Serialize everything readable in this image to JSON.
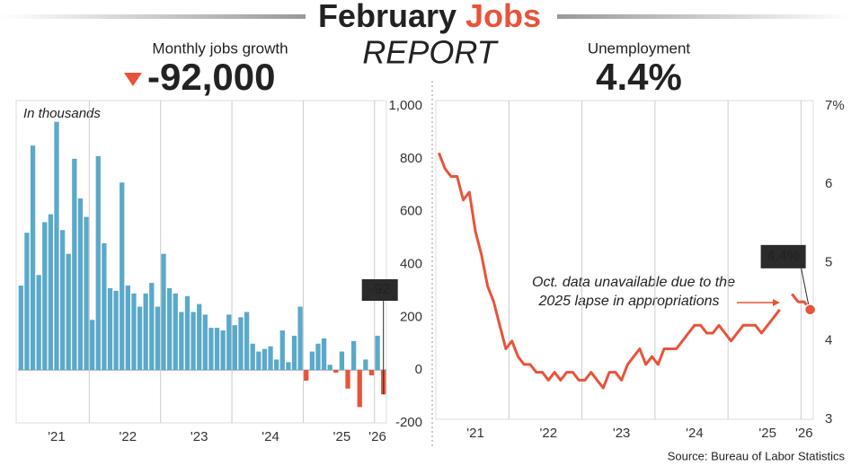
{
  "header": {
    "title_1": "February",
    "title_2": "Jobs",
    "subtitle": "REPORT"
  },
  "source": "Source: Bureau of Labor Statistics",
  "chart_data": [
    {
      "type": "bar",
      "title": "Monthly jobs growth",
      "headline": "-92,000",
      "unit_note": "In thousands",
      "color": "#5aa9c9",
      "negative_color": "#e8533a",
      "categories": [
        null,
        null,
        null,
        null,
        null,
        null,
        "'21",
        null,
        null,
        null,
        null,
        null,
        null,
        null,
        null,
        null,
        null,
        null,
        "'22",
        null,
        null,
        null,
        null,
        null,
        null,
        null,
        null,
        null,
        null,
        null,
        "'23",
        null,
        null,
        null,
        null,
        null,
        null,
        null,
        null,
        null,
        null,
        null,
        "'24",
        null,
        null,
        null,
        null,
        null,
        null,
        null,
        null,
        null,
        null,
        null,
        "'25",
        null,
        null,
        null,
        null,
        null,
        "'26",
        null
      ],
      "series": [
        {
          "name": "Monthly jobs growth",
          "values": [
            320,
            520,
            850,
            360,
            560,
            590,
            940,
            530,
            440,
            800,
            650,
            580,
            190,
            810,
            480,
            310,
            300,
            710,
            320,
            290,
            240,
            290,
            330,
            240,
            440,
            310,
            290,
            220,
            280,
            220,
            250,
            210,
            160,
            160,
            150,
            210,
            170,
            200,
            220,
            100,
            70,
            80,
            90,
            40,
            150,
            30,
            130,
            240,
            -40,
            70,
            100,
            120,
            20,
            -10,
            70,
            -70,
            110,
            -140,
            40,
            -20,
            130,
            -92
          ]
        }
      ],
      "ylim": [
        -200,
        1000
      ],
      "yticks": [
        {
          "value": 1000,
          "label": "1,000"
        },
        800,
        600,
        400,
        200,
        0,
        -200
      ]
    },
    {
      "type": "line",
      "title": "Unemployment",
      "headline": "4.4%",
      "color": "#e8533a",
      "annotation": [
        "Oct. data unavailable due to the",
        "2025 lapse in appropriations"
      ],
      "categories": [
        null,
        null,
        null,
        null,
        null,
        null,
        "'21",
        null,
        null,
        null,
        null,
        null,
        null,
        null,
        null,
        null,
        null,
        null,
        "'22",
        null,
        null,
        null,
        null,
        null,
        null,
        null,
        null,
        null,
        null,
        null,
        "'23",
        null,
        null,
        null,
        null,
        null,
        null,
        null,
        null,
        null,
        null,
        null,
        "'24",
        null,
        null,
        null,
        null,
        null,
        null,
        null,
        null,
        null,
        null,
        null,
        "'25",
        null,
        null,
        null,
        null,
        null,
        "'26",
        null
      ],
      "series": [
        {
          "name": "Unemployment",
          "values": [
            6.4,
            6.2,
            6.1,
            6.1,
            5.8,
            5.9,
            5.4,
            5.1,
            4.7,
            4.5,
            4.2,
            3.9,
            4.0,
            3.8,
            3.7,
            3.7,
            3.6,
            3.6,
            3.5,
            3.6,
            3.5,
            3.6,
            3.6,
            3.5,
            3.5,
            3.6,
            3.5,
            3.4,
            3.6,
            3.6,
            3.5,
            3.7,
            3.8,
            3.9,
            3.7,
            3.8,
            3.7,
            3.9,
            3.9,
            3.9,
            4.0,
            4.1,
            4.2,
            4.2,
            4.1,
            4.1,
            4.2,
            4.1,
            4.0,
            4.1,
            4.2,
            4.2,
            4.2,
            4.1,
            4.2,
            4.3,
            4.4,
            null,
            4.6,
            4.5,
            4.5,
            4.4
          ],
          "value_labels": [
            null,
            null,
            null,
            null,
            null,
            null,
            null,
            null,
            null,
            null,
            null,
            null,
            null,
            null,
            null,
            null,
            null,
            null,
            null,
            null,
            null,
            null,
            null,
            null,
            null,
            null,
            null,
            null,
            null,
            null,
            null,
            null,
            null,
            null,
            null,
            null,
            null,
            null,
            null,
            null,
            null,
            null,
            null,
            null,
            null,
            null,
            null,
            null,
            null,
            null,
            null,
            null,
            null,
            null,
            null,
            null,
            null,
            null,
            null,
            null,
            null,
            "4.4%"
          ]
        }
      ],
      "ylim": [
        3,
        7
      ],
      "yticks": [
        3,
        4,
        5,
        6,
        {
          "value": 7,
          "label": "7%"
        }
      ]
    }
  ]
}
